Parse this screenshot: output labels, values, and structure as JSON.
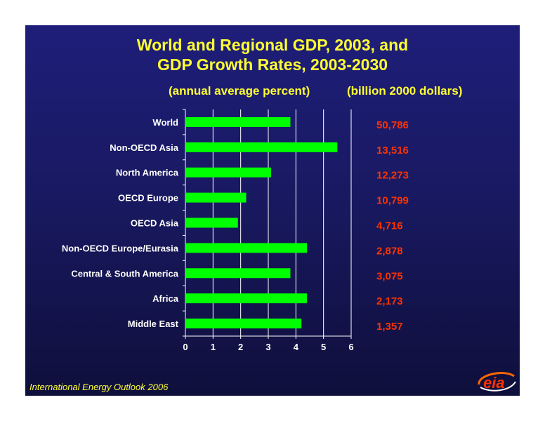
{
  "title_line1": "World and Regional GDP, 2003, and",
  "title_line2": "GDP Growth Rates, 2003-2030",
  "subtitle_left": "(annual average percent)",
  "subtitle_right": "(billion 2000 dollars)",
  "footer": "International Energy Outlook 2006",
  "logo_text": "eia",
  "colors": {
    "bar": "#00ff00",
    "title": "#ffff33",
    "values": "#ff3300",
    "labels": "#ffffff"
  },
  "chart_data": {
    "type": "bar",
    "orientation": "horizontal",
    "categories": [
      "World",
      "Non-OECD Asia",
      "North America",
      "OECD Europe",
      "OECD Asia",
      "Non-OECD Europe/Eurasia",
      "Central & South America",
      "Africa",
      "Middle East"
    ],
    "values": [
      3.8,
      5.5,
      3.1,
      2.2,
      1.9,
      4.4,
      3.8,
      4.4,
      4.2
    ],
    "gdp_2003": [
      "50,786",
      "13,516",
      "12,273",
      "10,799",
      "4,716",
      "2,878",
      "3,075",
      "2,173",
      "1,357"
    ],
    "xlim": [
      0,
      6
    ],
    "xticks": [
      "0",
      "1",
      "2",
      "3",
      "4",
      "5",
      "6"
    ],
    "grid": "vertical"
  }
}
